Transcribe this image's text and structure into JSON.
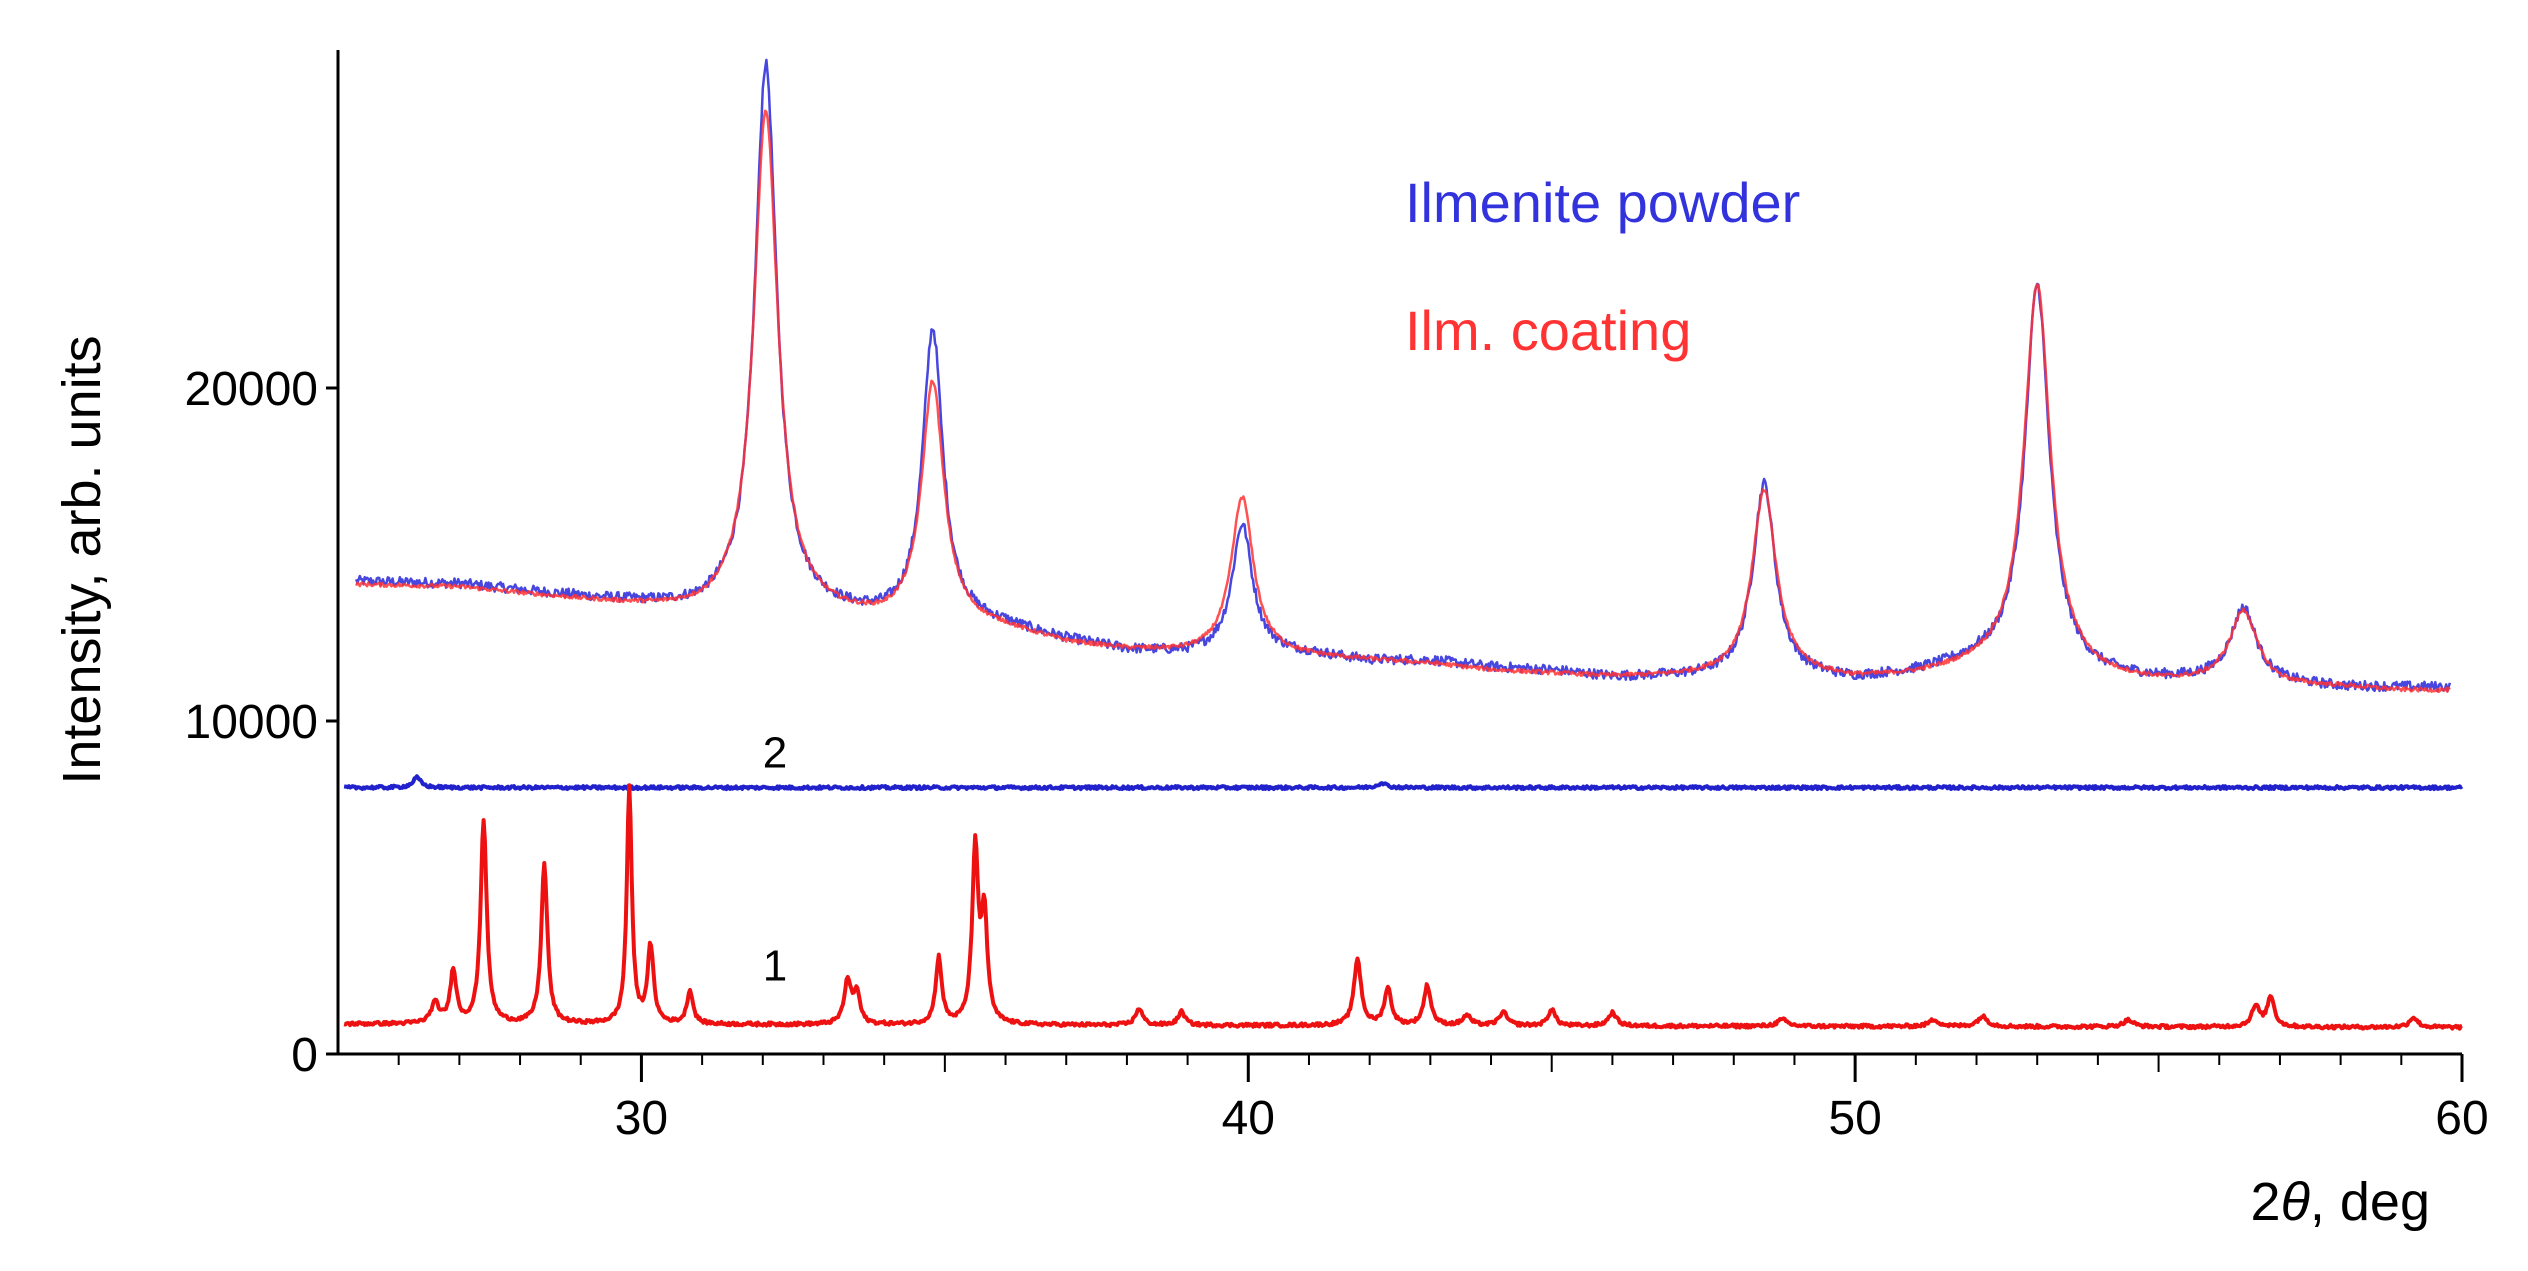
{
  "chart_data": {
    "type": "line",
    "xlabel_prefix": "2",
    "xlabel_symbol": "θ",
    "xlabel_suffix": ", deg",
    "ylabel": "Intensity, arb. units",
    "xlim": [
      25,
      60
    ],
    "ylim": [
      0,
      30000
    ],
    "x_ticks": [
      30,
      40,
      50,
      60
    ],
    "y_ticks": [
      0,
      10000,
      20000
    ],
    "x_tick_labels": [
      "30",
      "40",
      "50",
      "60"
    ],
    "y_tick_labels": [
      "0",
      "10000",
      "20000"
    ],
    "legend": [
      {
        "label": "Ilmenite powder",
        "color": "#3333dd"
      },
      {
        "label": "Ilm. coating",
        "color": "#ff3333"
      }
    ],
    "curve_labels": [
      {
        "text": "1",
        "x": 32.2,
        "y": 2200
      },
      {
        "text": "2",
        "x": 32.2,
        "y": 8600
      }
    ],
    "series": [
      {
        "name": "Ilmenite powder",
        "color": "#3333dd",
        "width": 2.5,
        "opacity": 0.9,
        "baseline": [
          [
            25,
            14200
          ],
          [
            27,
            14100
          ],
          [
            29,
            13700
          ],
          [
            31,
            13300
          ],
          [
            32,
            13400
          ],
          [
            33,
            13200
          ],
          [
            34,
            13000
          ],
          [
            35,
            13000
          ],
          [
            36,
            12800
          ],
          [
            37,
            12400
          ],
          [
            38,
            12100
          ],
          [
            39,
            12000
          ],
          [
            40,
            12100
          ],
          [
            41,
            12000
          ],
          [
            42,
            11800
          ],
          [
            43,
            11800
          ],
          [
            44,
            11600
          ],
          [
            45,
            11500
          ],
          [
            46,
            11300
          ],
          [
            47,
            11300
          ],
          [
            48,
            11300
          ],
          [
            49,
            11300
          ],
          [
            50,
            11200
          ],
          [
            51,
            11400
          ],
          [
            52,
            11700
          ],
          [
            53,
            11600
          ],
          [
            54,
            11300
          ],
          [
            55,
            11200
          ],
          [
            56,
            11200
          ],
          [
            57,
            11100
          ],
          [
            58,
            11000
          ],
          [
            59,
            11000
          ],
          [
            59.8,
            11000
          ]
        ],
        "peaks": [
          [
            32.05,
            16300,
            0.22
          ],
          [
            34.8,
            8700,
            0.2
          ],
          [
            39.9,
            3800,
            0.2
          ],
          [
            48.5,
            5800,
            0.22
          ],
          [
            53.0,
            11500,
            0.24
          ],
          [
            56.4,
            2200,
            0.25
          ]
        ],
        "noise": 150,
        "x_range": [
          25.3,
          59.8
        ]
      },
      {
        "name": "Ilm. coating",
        "color": "#ff3333",
        "width": 2.5,
        "opacity": 0.85,
        "baseline": [
          [
            25,
            14100
          ],
          [
            27,
            14000
          ],
          [
            29,
            13600
          ],
          [
            31,
            13200
          ],
          [
            32,
            13300
          ],
          [
            33,
            13100
          ],
          [
            34,
            12900
          ],
          [
            35,
            12900
          ],
          [
            36,
            12700
          ],
          [
            37,
            12300
          ],
          [
            38,
            12100
          ],
          [
            39,
            12000
          ],
          [
            40,
            12000
          ],
          [
            41,
            11900
          ],
          [
            42,
            11800
          ],
          [
            43,
            11700
          ],
          [
            44,
            11500
          ],
          [
            45,
            11400
          ],
          [
            46,
            11300
          ],
          [
            47,
            11300
          ],
          [
            48,
            11300
          ],
          [
            49,
            11300
          ],
          [
            50,
            11200
          ],
          [
            51,
            11300
          ],
          [
            52,
            11500
          ],
          [
            53,
            11500
          ],
          [
            54,
            11200
          ],
          [
            55,
            11100
          ],
          [
            56,
            11100
          ],
          [
            57,
            11000
          ],
          [
            58,
            11000
          ],
          [
            59,
            10900
          ],
          [
            59.8,
            10900
          ]
        ],
        "peaks": [
          [
            32.05,
            15000,
            0.24
          ],
          [
            34.8,
            7200,
            0.22
          ],
          [
            39.9,
            4700,
            0.22
          ],
          [
            48.5,
            5600,
            0.24
          ],
          [
            53.0,
            11600,
            0.26
          ],
          [
            56.4,
            2200,
            0.27
          ]
        ],
        "noise": 60,
        "x_range": [
          25.3,
          59.8
        ]
      },
      {
        "name": "2",
        "color": "#2222cc",
        "width": 4,
        "opacity": 1,
        "baseline": [
          [
            25,
            8000
          ],
          [
            60,
            8000
          ]
        ],
        "peaks": [
          [
            26.3,
            300,
            0.08
          ],
          [
            42.2,
            150,
            0.08
          ]
        ],
        "noise": 45,
        "x_range": [
          25.1,
          60
        ]
      },
      {
        "name": "1",
        "color": "#ee1111",
        "width": 4,
        "opacity": 1,
        "baseline": [
          [
            25,
            900
          ],
          [
            60,
            800
          ]
        ],
        "peaks": [
          [
            26.6,
            600,
            0.08
          ],
          [
            26.9,
            1600,
            0.06
          ],
          [
            27.4,
            6100,
            0.06
          ],
          [
            28.4,
            4800,
            0.06
          ],
          [
            29.8,
            7100,
            0.05
          ],
          [
            30.15,
            2300,
            0.06
          ],
          [
            30.8,
            1000,
            0.06
          ],
          [
            33.4,
            1300,
            0.07
          ],
          [
            33.55,
            900,
            0.06
          ],
          [
            34.9,
            2000,
            0.06
          ],
          [
            35.5,
            5200,
            0.06
          ],
          [
            35.65,
            3200,
            0.06
          ],
          [
            38.2,
            500,
            0.07
          ],
          [
            38.9,
            400,
            0.07
          ],
          [
            41.8,
            2000,
            0.07
          ],
          [
            42.3,
            1100,
            0.07
          ],
          [
            42.95,
            1200,
            0.07
          ],
          [
            43.6,
            300,
            0.08
          ],
          [
            44.2,
            400,
            0.08
          ],
          [
            45.0,
            500,
            0.07
          ],
          [
            46.0,
            400,
            0.08
          ],
          [
            48.8,
            200,
            0.1
          ],
          [
            51.3,
            200,
            0.1
          ],
          [
            52.1,
            300,
            0.1
          ],
          [
            54.5,
            200,
            0.1
          ],
          [
            56.6,
            600,
            0.08
          ],
          [
            56.85,
            900,
            0.07
          ],
          [
            59.2,
            300,
            0.08
          ]
        ],
        "noise": 50,
        "x_range": [
          25.1,
          60
        ]
      }
    ]
  }
}
